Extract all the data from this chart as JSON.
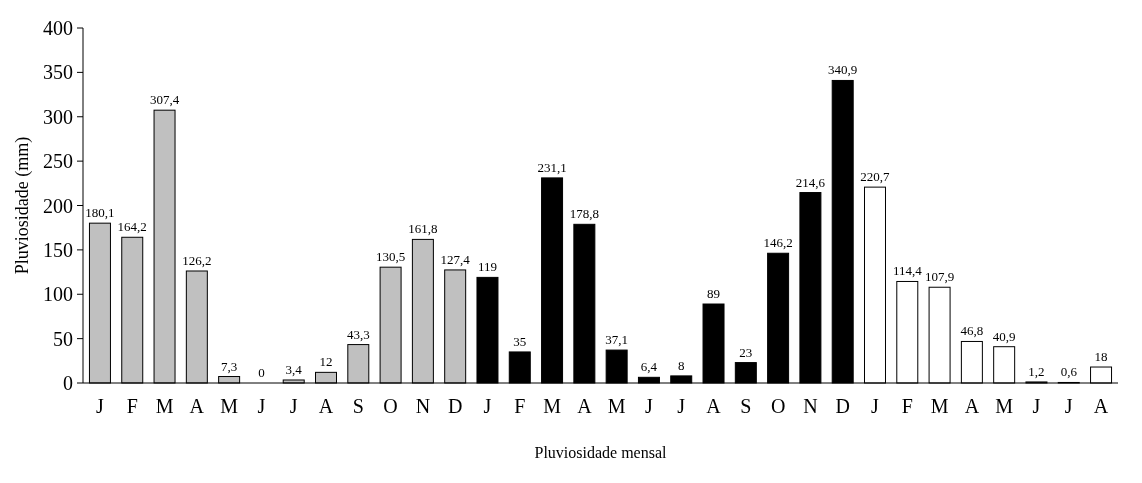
{
  "chart_data": {
    "type": "bar",
    "xlabel": "Pluviosidade mensal",
    "ylabel": "Pluviosidade (mm)",
    "categories": [
      "J",
      "F",
      "M",
      "A",
      "M",
      "J",
      "J",
      "A",
      "S",
      "O",
      "N",
      "D",
      "J",
      "F",
      "M",
      "A",
      "M",
      "J",
      "J",
      "A",
      "S",
      "O",
      "N",
      "D",
      "J",
      "F",
      "M",
      "A",
      "M",
      "J",
      "J",
      "A"
    ],
    "values": [
      180.1,
      164.2,
      307.4,
      126.2,
      7.3,
      0,
      3.4,
      12,
      43.3,
      130.5,
      161.8,
      127.4,
      119,
      35,
      231.1,
      178.8,
      37.1,
      6.4,
      8,
      89,
      23,
      146.2,
      214.6,
      340.9,
      220.7,
      114.4,
      107.9,
      46.8,
      40.9,
      1.2,
      0.6,
      18
    ],
    "value_labels": [
      "180,1",
      "164,2",
      "307,4",
      "126,2",
      "7,3",
      "0",
      "3,4",
      "12",
      "43,3",
      "130,5",
      "161,8",
      "127,4",
      "119",
      "35",
      "231,1",
      "178,8",
      "37,1",
      "6,4",
      "8",
      "89",
      "23",
      "146,2",
      "214,6",
      "340,9",
      "220,7",
      "114,4",
      "107,9",
      "46,8",
      "40,9",
      "1,2",
      "0,6",
      "18"
    ],
    "colors": [
      "#c0c0c0",
      "#c0c0c0",
      "#c0c0c0",
      "#c0c0c0",
      "#c0c0c0",
      "#c0c0c0",
      "#c0c0c0",
      "#c0c0c0",
      "#c0c0c0",
      "#c0c0c0",
      "#c0c0c0",
      "#c0c0c0",
      "#000000",
      "#000000",
      "#000000",
      "#000000",
      "#000000",
      "#000000",
      "#000000",
      "#000000",
      "#000000",
      "#000000",
      "#000000",
      "#000000",
      "#ffffff",
      "#ffffff",
      "#ffffff",
      "#ffffff",
      "#ffffff",
      "#ffffff",
      "#ffffff",
      "#ffffff"
    ],
    "ylim": [
      0,
      400
    ],
    "yticks": [
      0,
      50,
      100,
      150,
      200,
      250,
      300,
      350,
      400
    ]
  }
}
